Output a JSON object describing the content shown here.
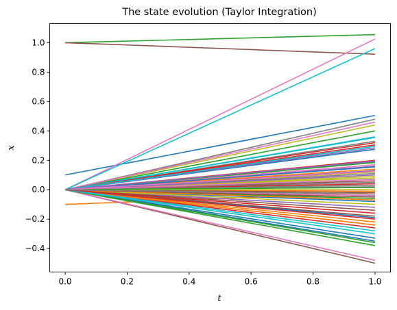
{
  "chart_data": {
    "type": "line",
    "title": "The state evolution (Taylor Integration)",
    "xlabel": "t",
    "ylabel": "x",
    "xlim": [
      -0.05,
      1.05
    ],
    "ylim": [
      -0.56,
      1.13
    ],
    "x_ticks": [
      0.0,
      0.2,
      0.4,
      0.6,
      0.8,
      1.0
    ],
    "x_tick_labels": [
      "0.0",
      "0.2",
      "0.4",
      "0.6",
      "0.8",
      "1.0"
    ],
    "y_ticks": [
      -0.4,
      -0.2,
      0.0,
      0.2,
      0.4,
      0.6,
      0.8,
      1.0
    ],
    "y_tick_labels": [
      "−0.4",
      "−0.2",
      "0.0",
      "0.2",
      "0.4",
      "0.6",
      "0.8",
      "1.0"
    ],
    "grid": false,
    "x": [
      0.0,
      1.0
    ],
    "palette": [
      "#1f77b4",
      "#ff7f0e",
      "#2ca02c",
      "#d62728",
      "#9467bd",
      "#8c564b",
      "#e377c2",
      "#7f7f7f",
      "#bcbd22",
      "#17becf"
    ],
    "series": [
      {
        "values": [
          0.1,
          0.505
        ]
      },
      {
        "values": [
          -0.1,
          -0.02
        ]
      },
      {
        "values": [
          1.0,
          1.055
        ]
      },
      {
        "values": [
          0.0,
          0.305
        ]
      },
      {
        "values": [
          0.0,
          0.16
        ]
      },
      {
        "values": [
          1.0,
          0.922
        ]
      },
      {
        "values": [
          0.0,
          1.025
        ]
      },
      {
        "values": [
          0.0,
          0.48
        ]
      },
      {
        "values": [
          0.0,
          0.44
        ]
      },
      {
        "values": [
          0.0,
          0.96
        ]
      },
      {
        "values": [
          0.0,
          0.275
        ]
      },
      {
        "values": [
          0.0,
          -0.24
        ]
      },
      {
        "values": [
          0.0,
          0.4
        ]
      },
      {
        "values": [
          0.0,
          0.2
        ]
      },
      {
        "values": [
          0.0,
          0.285
        ]
      },
      {
        "values": [
          0.0,
          -0.5
        ]
      },
      {
        "values": [
          0.0,
          -0.48
        ]
      },
      {
        "values": [
          0.0,
          0.33
        ]
      },
      {
        "values": [
          0.0,
          0.12
        ]
      },
      {
        "values": [
          0.0,
          0.36
        ]
      },
      {
        "values": [
          0.0,
          -0.33
        ]
      },
      {
        "values": [
          0.0,
          -0.01
        ]
      },
      {
        "values": [
          0.0,
          -0.38
        ]
      },
      {
        "values": [
          0.0,
          -0.26
        ]
      },
      {
        "values": [
          0.0,
          0.19
        ]
      },
      {
        "values": [
          0.0,
          0.06
        ]
      },
      {
        "values": [
          0.0,
          0.46
        ]
      },
      {
        "values": [
          0.0,
          0.05
        ]
      },
      {
        "values": [
          0.0,
          0.08
        ]
      },
      {
        "values": [
          0.0,
          0.355
        ]
      },
      {
        "values": [
          0.0,
          -0.35
        ]
      },
      {
        "values": [
          0.0,
          -0.24
        ]
      },
      {
        "values": [
          0.0,
          -0.36
        ]
      },
      {
        "values": [
          0.0,
          0.32
        ]
      },
      {
        "values": [
          0.0,
          0.13
        ]
      },
      {
        "values": [
          0.0,
          -0.02
        ]
      },
      {
        "values": [
          0.0,
          -0.04
        ]
      },
      {
        "values": [
          0.0,
          0.11
        ]
      },
      {
        "values": [
          0.0,
          0.09
        ]
      },
      {
        "values": [
          0.0,
          0.295
        ]
      },
      {
        "values": [
          0.0,
          -0.19
        ]
      },
      {
        "values": [
          0.0,
          -0.22
        ]
      },
      {
        "values": [
          0.0,
          -0.06
        ]
      },
      {
        "values": [
          0.0,
          -0.2
        ]
      },
      {
        "values": [
          0.0,
          0.1
        ]
      },
      {
        "values": [
          0.0,
          -0.18
        ]
      },
      {
        "values": [
          0.0,
          0.17
        ]
      },
      {
        "values": [
          0.0,
          0.02
        ]
      },
      {
        "values": [
          0.0,
          0.0
        ]
      },
      {
        "values": [
          0.0,
          -0.3
        ]
      },
      {
        "values": [
          0.0,
          -0.08
        ]
      },
      {
        "values": [
          0.0,
          0.14
        ]
      },
      {
        "values": [
          0.0,
          0.185
        ]
      },
      {
        "values": [
          0.0,
          0.04
        ]
      },
      {
        "values": [
          0.0,
          -0.12
        ]
      },
      {
        "values": [
          0.0,
          -0.14
        ]
      },
      {
        "values": [
          0.0,
          0.07
        ]
      },
      {
        "values": [
          0.0,
          0.03
        ]
      },
      {
        "values": [
          0.0,
          -0.1
        ]
      },
      {
        "values": [
          0.0,
          -0.28
        ]
      },
      {
        "values": [
          0.0,
          0.155
        ]
      },
      {
        "values": [
          0.0,
          -0.07
        ]
      },
      {
        "values": [
          0.0,
          0.015
        ]
      },
      {
        "values": [
          0.0,
          -0.16
        ]
      },
      {
        "values": [
          0.0,
          0.195
        ]
      },
      {
        "values": [
          0.0,
          -0.05
        ]
      },
      {
        "values": [
          0.0,
          0.125
        ]
      },
      {
        "values": [
          0.0,
          -0.03
        ]
      }
    ]
  }
}
